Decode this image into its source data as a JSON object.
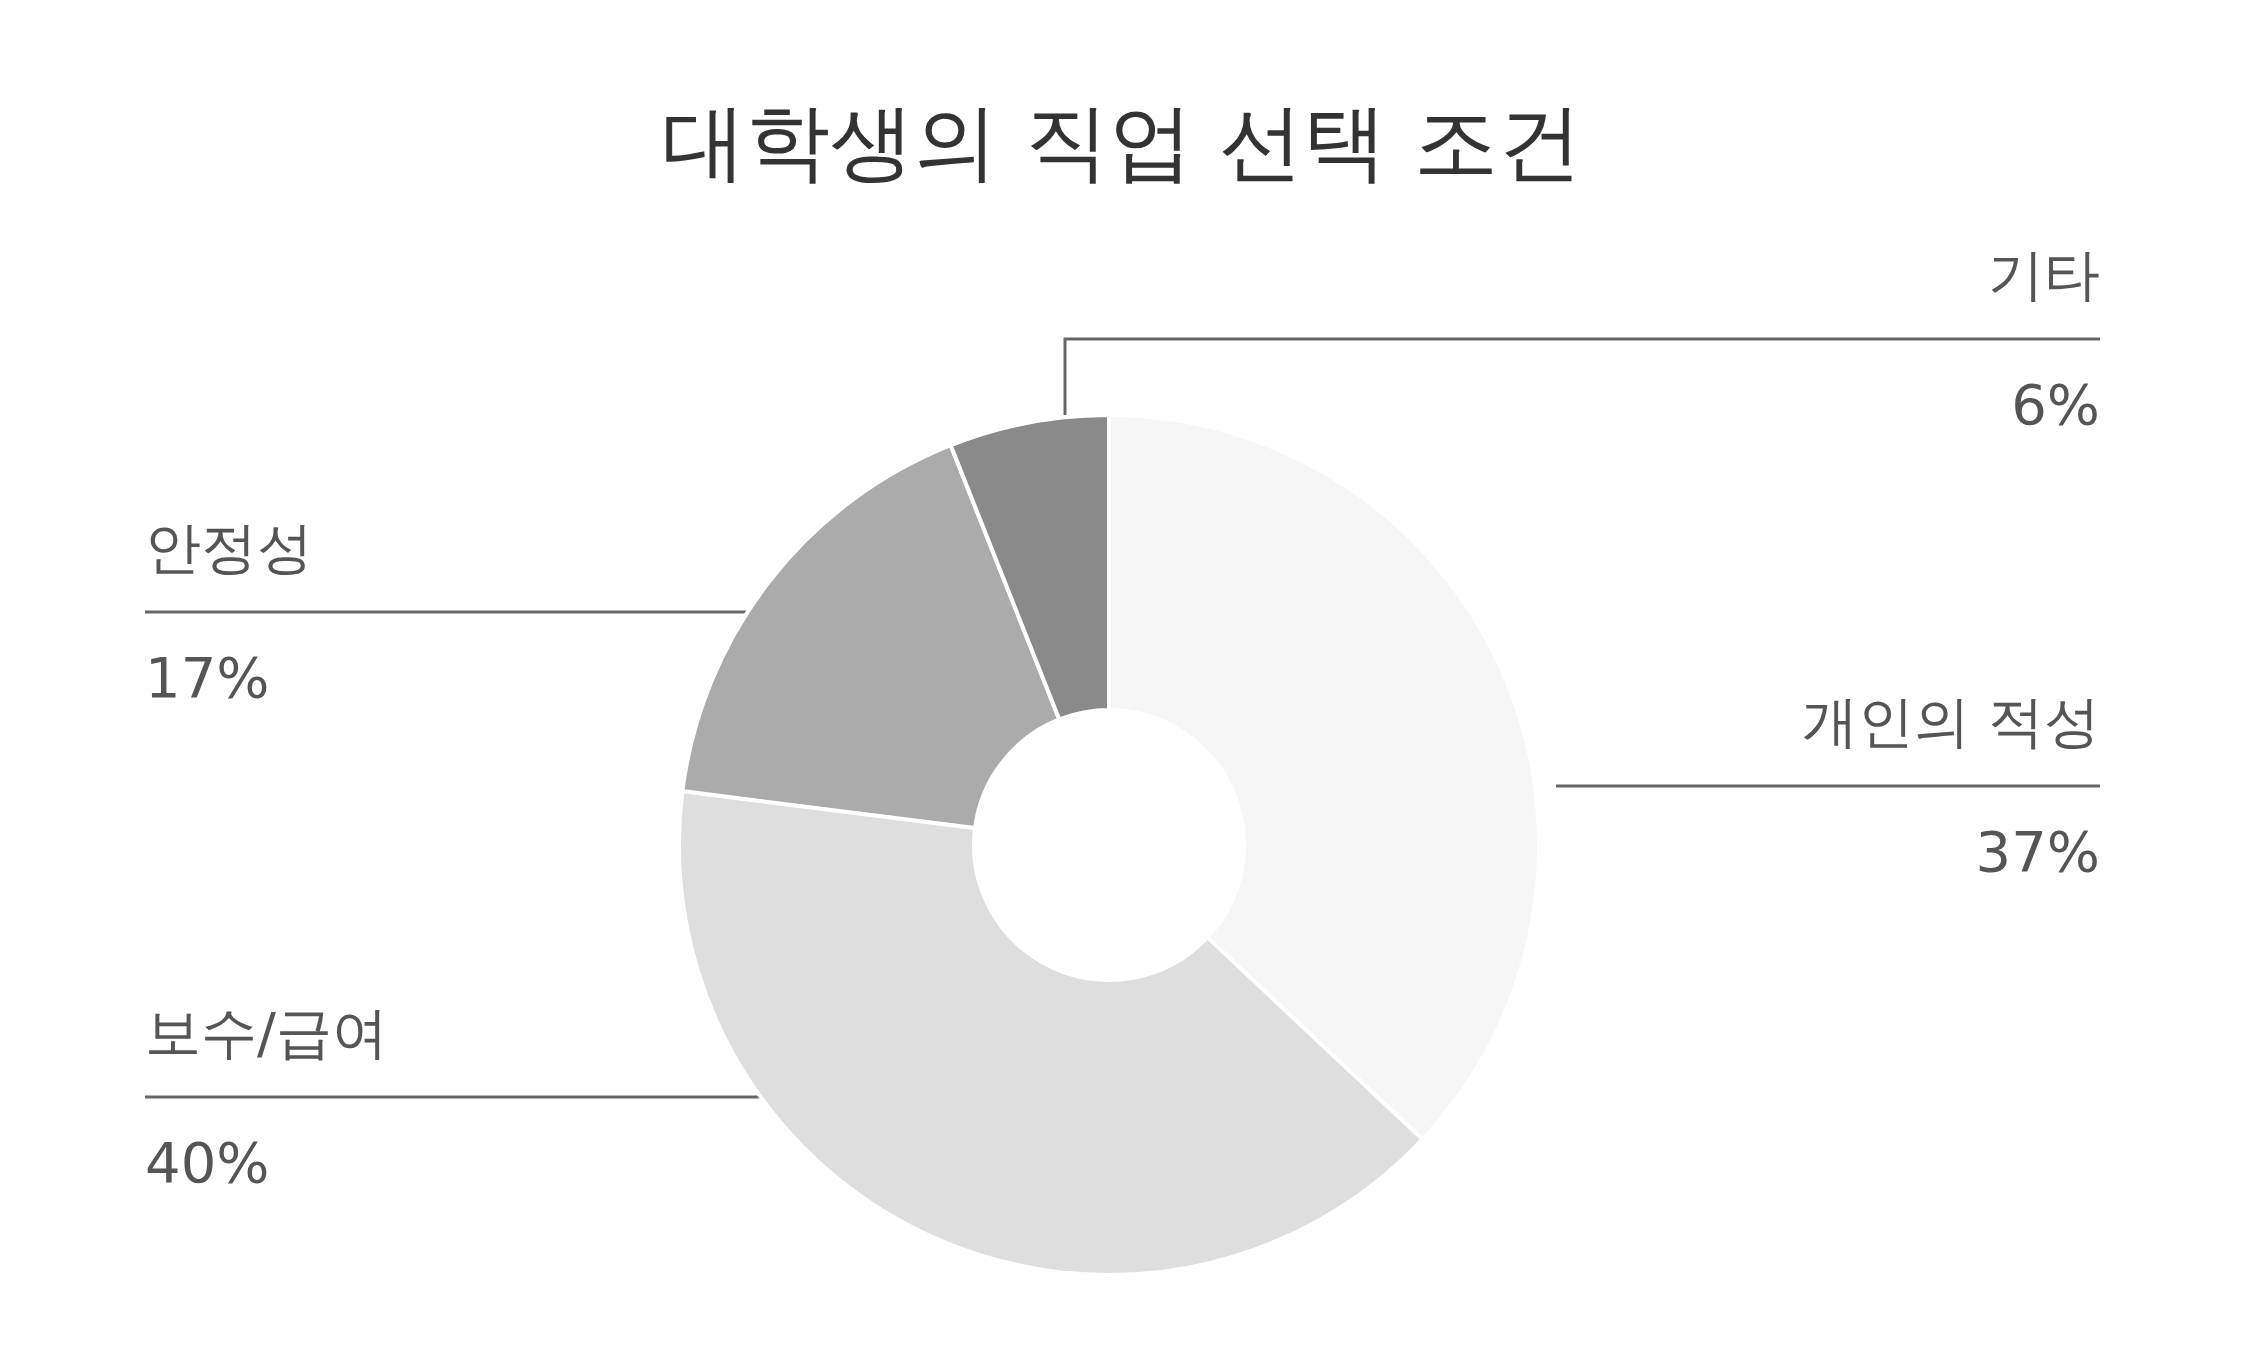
{
  "chart_data": {
    "type": "donut",
    "title": "대학생의 직업 선택 조건",
    "categories": [
      "개인의 적성",
      "보수/급여",
      "안정성",
      "기타"
    ],
    "values": [
      37,
      40,
      17,
      6
    ],
    "colors": [
      "#f6f6f6",
      "#dedede",
      "#ababab",
      "#8a8a8a"
    ],
    "value_labels": [
      "37%",
      "40%",
      "17%",
      "6%"
    ],
    "legend": false
  }
}
